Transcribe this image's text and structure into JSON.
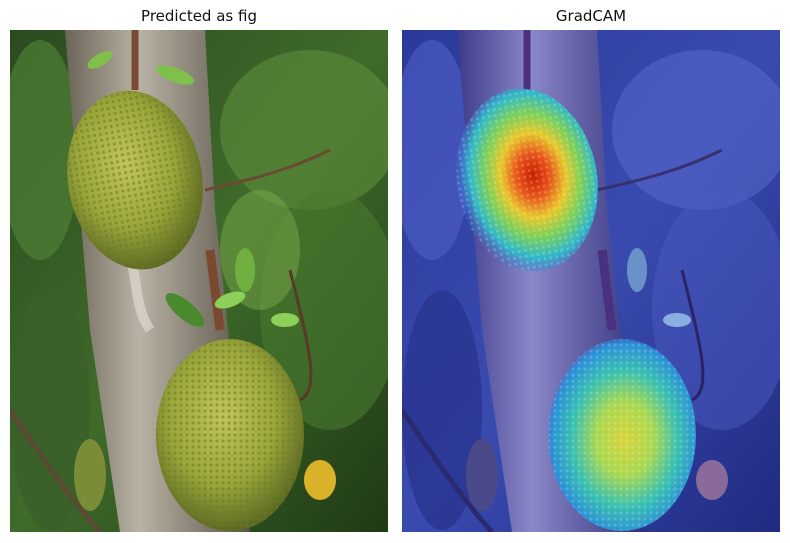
{
  "figure": {
    "left_title": "Predicted as fig",
    "right_title": "GradCAM"
  },
  "images": {
    "left": {
      "subject": "jackfruit-on-tree-photo"
    },
    "right": {
      "subject": "gradcam-heatmap-overlay",
      "colormap": "jet"
    }
  },
  "colors": {
    "fruit": "#9aa63a",
    "foliage": "#2f5a22",
    "trunk": "#8f8a80",
    "heat_low": "#1f1fbf",
    "heat_high": "#c81e00"
  }
}
